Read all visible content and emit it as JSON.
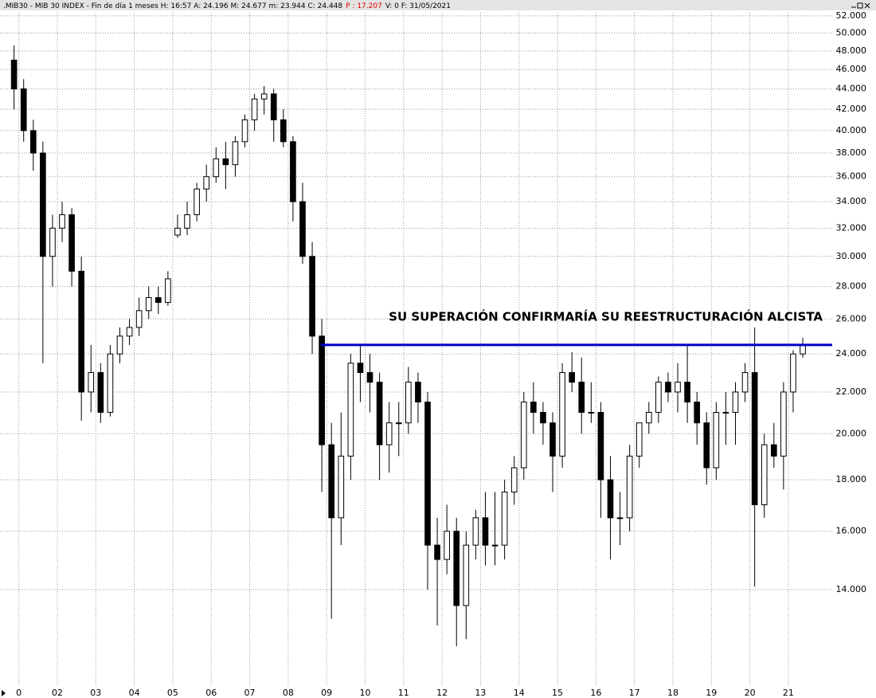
{
  "header": {
    "left": ".MIB30 - MIB 30 INDEX - Fin de día 1 meses  H: 16:57  A: 24.196  M: 24.677  m: 23.944  C: 24.448",
    "highlight": "P : 17.207",
    "right": "V: 0  F: 31/05/2021"
  },
  "chart_data": {
    "type": "candlestick",
    "x": [
      2000.875,
      2001.125,
      2001.375,
      2001.625,
      2001.875,
      2002.125,
      2002.375,
      2002.625,
      2002.875,
      2003.125,
      2003.375,
      2003.625,
      2003.875,
      2004.125,
      2004.375,
      2004.625,
      2004.875,
      2005.125,
      2005.375,
      2005.625,
      2005.875,
      2006.125,
      2006.375,
      2006.625,
      2006.875,
      2007.125,
      2007.375,
      2007.625,
      2007.875,
      2008.125,
      2008.375,
      2008.625,
      2008.875,
      2009.125,
      2009.375,
      2009.625,
      2009.875,
      2010.125,
      2010.375,
      2010.625,
      2010.875,
      2011.125,
      2011.375,
      2011.625,
      2011.875,
      2012.125,
      2012.375,
      2012.625,
      2012.875,
      2013.125,
      2013.375,
      2013.625,
      2013.875,
      2014.125,
      2014.375,
      2014.625,
      2014.875,
      2015.125,
      2015.375,
      2015.625,
      2015.875,
      2016.125,
      2016.375,
      2016.625,
      2016.875,
      2017.125,
      2017.375,
      2017.625,
      2017.875,
      2018.125,
      2018.375,
      2018.625,
      2018.875,
      2019.125,
      2019.375,
      2019.625,
      2019.875,
      2020.125,
      2020.375,
      2020.625,
      2020.875,
      2021.125,
      2021.375
    ],
    "open": [
      47,
      44,
      40,
      38,
      30,
      32,
      33,
      29,
      22,
      23,
      21,
      24,
      25,
      25.5,
      26.5,
      27.3,
      27,
      31.5,
      32,
      33,
      35,
      36,
      37.5,
      37,
      39,
      41,
      43,
      43.5,
      41,
      39,
      34,
      30,
      25,
      19.5,
      16.5,
      19,
      23.5,
      23,
      22.5,
      19.5,
      20.5,
      20.5,
      22.5,
      21.5,
      15.5,
      15,
      16,
      13.5,
      15.5,
      16.5,
      15.5,
      15.5,
      17.5,
      18.5,
      21.5,
      21,
      20.5,
      19,
      23,
      22.5,
      21,
      21,
      18,
      16.5,
      16.5,
      19,
      20.5,
      21,
      22.5,
      22,
      22.5,
      21.5,
      20.5,
      18.5,
      21,
      21,
      22,
      23,
      17,
      19.5,
      19,
      22,
      24
    ],
    "high": [
      48.6,
      45,
      41,
      39,
      33,
      34,
      33.5,
      30,
      24.5,
      23.5,
      24.5,
      25.5,
      26,
      27.3,
      28,
      28,
      29,
      33,
      34,
      35.5,
      37,
      38.5,
      39,
      39.5,
      41.5,
      43.5,
      44.3,
      44,
      42,
      39.5,
      35.5,
      31,
      26,
      20.5,
      21,
      24,
      24.5,
      24,
      23,
      21.5,
      21.5,
      23.3,
      23,
      22,
      16.5,
      17,
      16.5,
      16,
      16.8,
      17.5,
      17.5,
      18,
      19,
      22,
      22.5,
      21.5,
      21,
      23.5,
      24.1,
      23.8,
      22.5,
      21.5,
      19,
      17.5,
      19.5,
      20.5,
      21.5,
      22.8,
      23,
      23.5,
      24.5,
      22,
      21,
      21.5,
      22,
      22.5,
      23.5,
      25.5,
      20,
      20.5,
      22.5,
      24.2,
      24.9
    ],
    "low": [
      42,
      39,
      36.5,
      23.5,
      28,
      31,
      28,
      20.6,
      21,
      20.5,
      20.8,
      23.5,
      24.5,
      25,
      26,
      26.3,
      26.8,
      31.3,
      31.5,
      32.5,
      34,
      35.5,
      35,
      36,
      38.5,
      40,
      41.5,
      39,
      38.5,
      32.5,
      29.5,
      24,
      17.5,
      13.1,
      15.5,
      18,
      21.5,
      21,
      18,
      18.3,
      19,
      20,
      20.5,
      14,
      12.9,
      14.5,
      12.3,
      12.5,
      15,
      14.8,
      14.8,
      15,
      17,
      18,
      20,
      19.5,
      17.5,
      18.5,
      22,
      20,
      20.5,
      16.5,
      15,
      15.5,
      16,
      18.5,
      20,
      20.5,
      21.5,
      21,
      20.5,
      19.5,
      17.8,
      18,
      19.5,
      19.5,
      21.5,
      14.1,
      16.5,
      18.5,
      17.6,
      21,
      23.8
    ],
    "close": [
      44,
      40,
      38,
      30,
      32,
      33,
      29,
      22,
      23,
      21,
      24,
      25,
      25.5,
      26.5,
      27.3,
      27,
      28.5,
      32,
      33,
      35,
      36,
      37.5,
      37,
      39,
      41,
      43,
      43.5,
      41,
      39,
      34,
      30,
      25,
      19.5,
      16.5,
      19,
      23.5,
      23,
      22.5,
      19.5,
      20.5,
      20.5,
      22.5,
      21.5,
      15.5,
      15,
      16,
      13.5,
      15.5,
      16.5,
      15.5,
      15.5,
      17.5,
      18.5,
      21.5,
      21,
      20.5,
      19,
      23,
      22.5,
      21,
      21,
      18,
      16.5,
      16.5,
      19,
      20.5,
      21,
      22.5,
      22,
      22.5,
      21.5,
      20.5,
      18.5,
      21,
      21,
      22,
      23,
      17,
      19.5,
      19,
      22,
      24,
      24.5
    ],
    "up_color": "#ffffff",
    "down_color": "#000000",
    "xlim": [
      2000.51,
      2022.14
    ],
    "xticks": [
      {
        "value": 2001,
        "label": "0"
      },
      {
        "value": 2002,
        "label": "02"
      },
      {
        "value": 2003,
        "label": "03"
      },
      {
        "value": 2004,
        "label": "04"
      },
      {
        "value": 2005,
        "label": "05"
      },
      {
        "value": 2006,
        "label": "06"
      },
      {
        "value": 2007,
        "label": "07"
      },
      {
        "value": 2008,
        "label": "08"
      },
      {
        "value": 2009,
        "label": "09"
      },
      {
        "value": 2010,
        "label": "10"
      },
      {
        "value": 2011,
        "label": "11"
      },
      {
        "value": 2012,
        "label": "12"
      },
      {
        "value": 2013,
        "label": "13"
      },
      {
        "value": 2014,
        "label": "14"
      },
      {
        "value": 2015,
        "label": "15"
      },
      {
        "value": 2016,
        "label": "16"
      },
      {
        "value": 2017,
        "label": "17"
      },
      {
        "value": 2018,
        "label": "18"
      },
      {
        "value": 2019,
        "label": "19"
      },
      {
        "value": 2020,
        "label": "20"
      },
      {
        "value": 2021,
        "label": "21"
      }
    ],
    "ylim": [
      11.25,
      52.95
    ],
    "ylog": true,
    "yticks": [
      {
        "value": 52,
        "label": "52.000"
      },
      {
        "value": 50,
        "label": "50.000"
      },
      {
        "value": 48,
        "label": "48.000"
      },
      {
        "value": 46,
        "label": "46.000"
      },
      {
        "value": 44,
        "label": "44.000"
      },
      {
        "value": 42,
        "label": "42.000"
      },
      {
        "value": 40,
        "label": "40.000"
      },
      {
        "value": 38,
        "label": "38.000"
      },
      {
        "value": 36,
        "label": "36.000"
      },
      {
        "value": 34,
        "label": "34.000"
      },
      {
        "value": 32,
        "label": "32.000"
      },
      {
        "value": 30,
        "label": "30.000"
      },
      {
        "value": 28,
        "label": "28.000"
      },
      {
        "value": 26,
        "label": "26.000"
      },
      {
        "value": 24,
        "label": "24.000"
      },
      {
        "value": 22,
        "label": "22.000"
      },
      {
        "value": 20,
        "label": "20.000"
      },
      {
        "value": 18,
        "label": "18.000"
      },
      {
        "value": 16,
        "label": "16.000"
      },
      {
        "value": 14,
        "label": "14.000"
      }
    ],
    "grid": true,
    "level_line": {
      "value": 24.5,
      "x_start": 2008.85,
      "color": "#0000cc"
    },
    "annotation": {
      "text": "SU SUPERACIÓN CONFIRMARÍA SU REESTRUCTURACIÓN ALCISTA",
      "color": "#1a8a1a"
    }
  }
}
